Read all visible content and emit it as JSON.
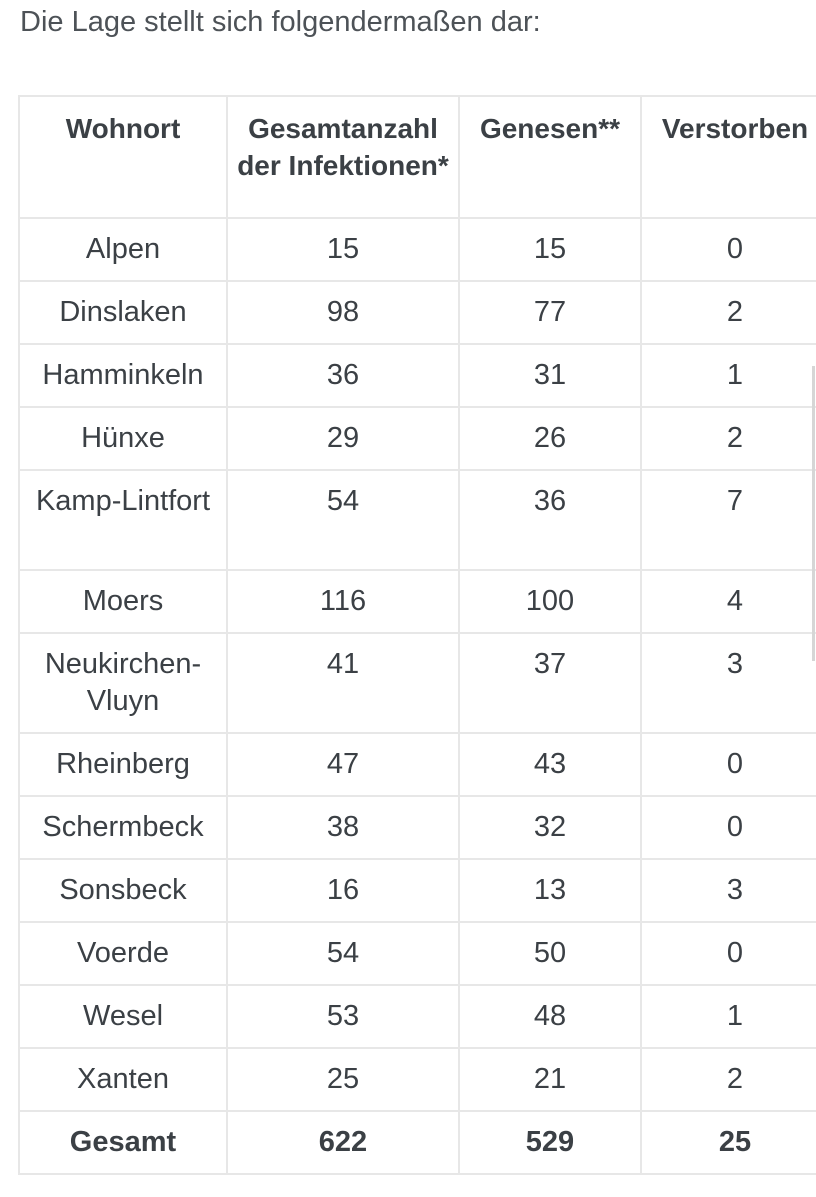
{
  "intro_text": "Die Lage stellt sich folgendermaßen dar:",
  "table": {
    "headers": [
      "Wohnort",
      "Gesamtanzahl der Infektionen*",
      "Genesen**",
      "Verstorben"
    ],
    "rows": [
      {
        "wohnort": "Alpen",
        "gesamt": "15",
        "genesen": "15",
        "verstorben": "0"
      },
      {
        "wohnort": "Dinslaken",
        "gesamt": "98",
        "genesen": "77",
        "verstorben": "2"
      },
      {
        "wohnort": "Hamminkeln",
        "gesamt": "36",
        "genesen": "31",
        "verstorben": "1"
      },
      {
        "wohnort": "Hünxe",
        "gesamt": "29",
        "genesen": "26",
        "verstorben": "2"
      },
      {
        "wohnort": "Kamp-Lintfort",
        "gesamt": "54",
        "genesen": "36",
        "verstorben": "7"
      },
      {
        "wohnort": "Moers",
        "gesamt": "116",
        "genesen": "100",
        "verstorben": "4"
      },
      {
        "wohnort": "Neukirchen-Vluyn",
        "gesamt": "41",
        "genesen": "37",
        "verstorben": "3"
      },
      {
        "wohnort": "Rheinberg",
        "gesamt": "47",
        "genesen": "43",
        "verstorben": "0"
      },
      {
        "wohnort": "Schermbeck",
        "gesamt": "38",
        "genesen": "32",
        "verstorben": "0"
      },
      {
        "wohnort": "Sonsbeck",
        "gesamt": "16",
        "genesen": "13",
        "verstorben": "3"
      },
      {
        "wohnort": "Voerde",
        "gesamt": "54",
        "genesen": "50",
        "verstorben": "0"
      },
      {
        "wohnort": "Wesel",
        "gesamt": "53",
        "genesen": "48",
        "verstorben": "1"
      },
      {
        "wohnort": "Xanten",
        "gesamt": "25",
        "genesen": "21",
        "verstorben": "2"
      }
    ],
    "total": {
      "wohnort": "Gesamt",
      "gesamt": "622",
      "genesen": "529",
      "verstorben": "25"
    }
  }
}
